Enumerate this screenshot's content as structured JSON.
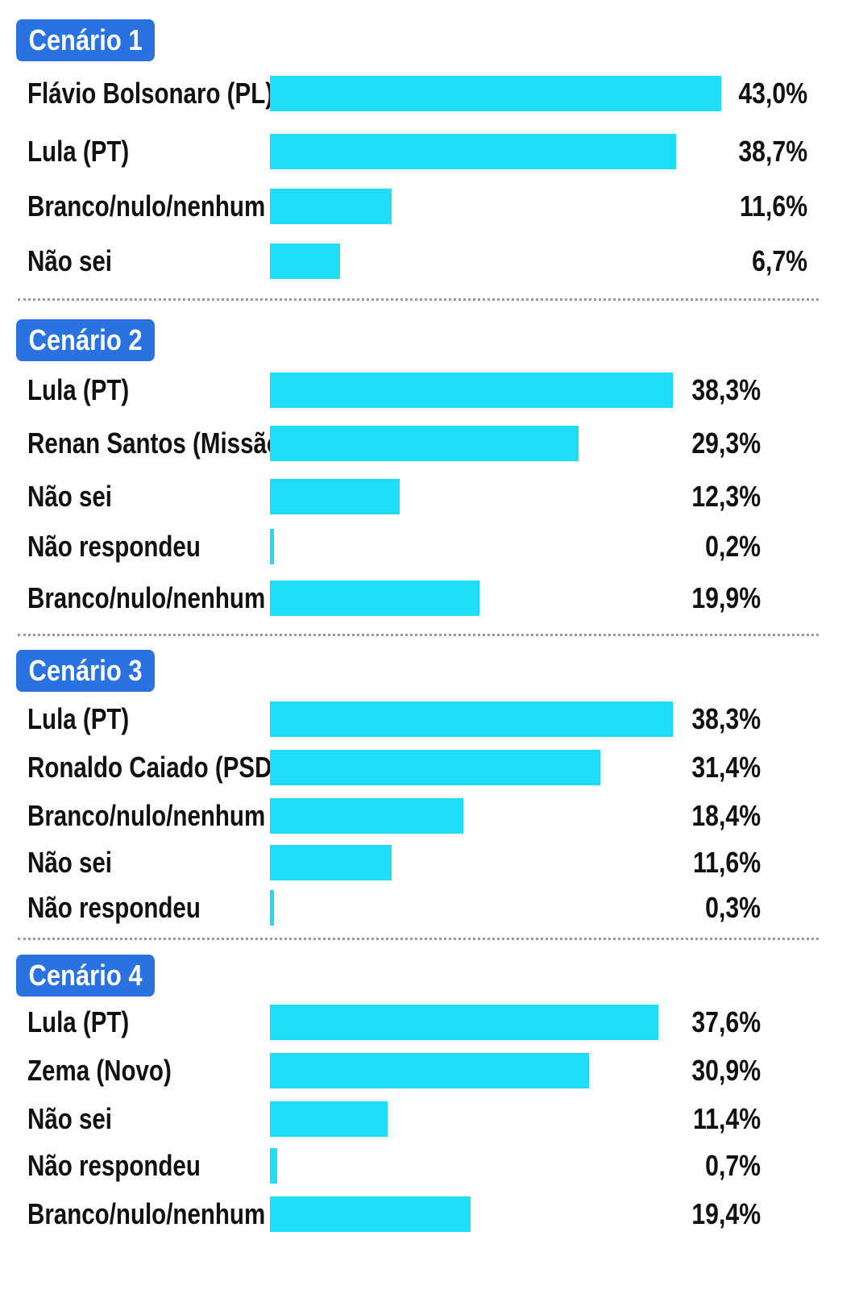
{
  "chart_data": [
    {
      "type": "bar",
      "orientation": "horizontal",
      "title": "Cenário 1",
      "categories": [
        "Flávio Bolsonaro (PL)",
        "Lula (PT)",
        "Branco/nulo/nenhum",
        "Não sei"
      ],
      "values": [
        43.0,
        38.7,
        11.6,
        6.7
      ],
      "value_labels": [
        "43,0%",
        "38,7%",
        "11,6%",
        "6,7%"
      ],
      "unit": "%",
      "xlim": [
        0,
        43.0
      ],
      "bar_color": "#1fdcf7",
      "badge_color": "#2a72e0"
    },
    {
      "type": "bar",
      "orientation": "horizontal",
      "title": "Cenário 2",
      "categories": [
        "Lula (PT)",
        "Renan Santos (Missão)",
        "Não sei",
        "Não respondeu",
        "Branco/nulo/nenhum"
      ],
      "values": [
        38.3,
        29.3,
        12.3,
        0.2,
        19.9
      ],
      "value_labels": [
        "38,3%",
        "29,3%",
        "12,3%",
        "0,2%",
        "19,9%"
      ],
      "unit": "%",
      "xlim": [
        0,
        38.3
      ],
      "bar_color": "#1fdcf7",
      "badge_color": "#2a72e0"
    },
    {
      "type": "bar",
      "orientation": "horizontal",
      "title": "Cenário 3",
      "categories": [
        "Lula (PT)",
        "Ronaldo Caiado (PSD)",
        "Branco/nulo/nenhum",
        "Não sei",
        "Não respondeu"
      ],
      "values": [
        38.3,
        31.4,
        18.4,
        11.6,
        0.3
      ],
      "value_labels": [
        "38,3%",
        "31,4%",
        "18,4%",
        "11,6%",
        "0,3%"
      ],
      "unit": "%",
      "xlim": [
        0,
        38.3
      ],
      "bar_color": "#1fdcf7",
      "badge_color": "#2a72e0"
    },
    {
      "type": "bar",
      "orientation": "horizontal",
      "title": "Cenário 4",
      "categories": [
        "Lula (PT)",
        "Zema (Novo)",
        "Não sei",
        "Não respondeu",
        "Branco/nulo/nenhum"
      ],
      "values": [
        37.6,
        30.9,
        11.4,
        0.7,
        19.4
      ],
      "value_labels": [
        "37,6%",
        "30,9%",
        "11,4%",
        "0,7%",
        "19,4%"
      ],
      "unit": "%",
      "xlim": [
        0,
        37.6
      ],
      "bar_color": "#1fdcf7",
      "badge_color": "#2a72e0"
    }
  ]
}
